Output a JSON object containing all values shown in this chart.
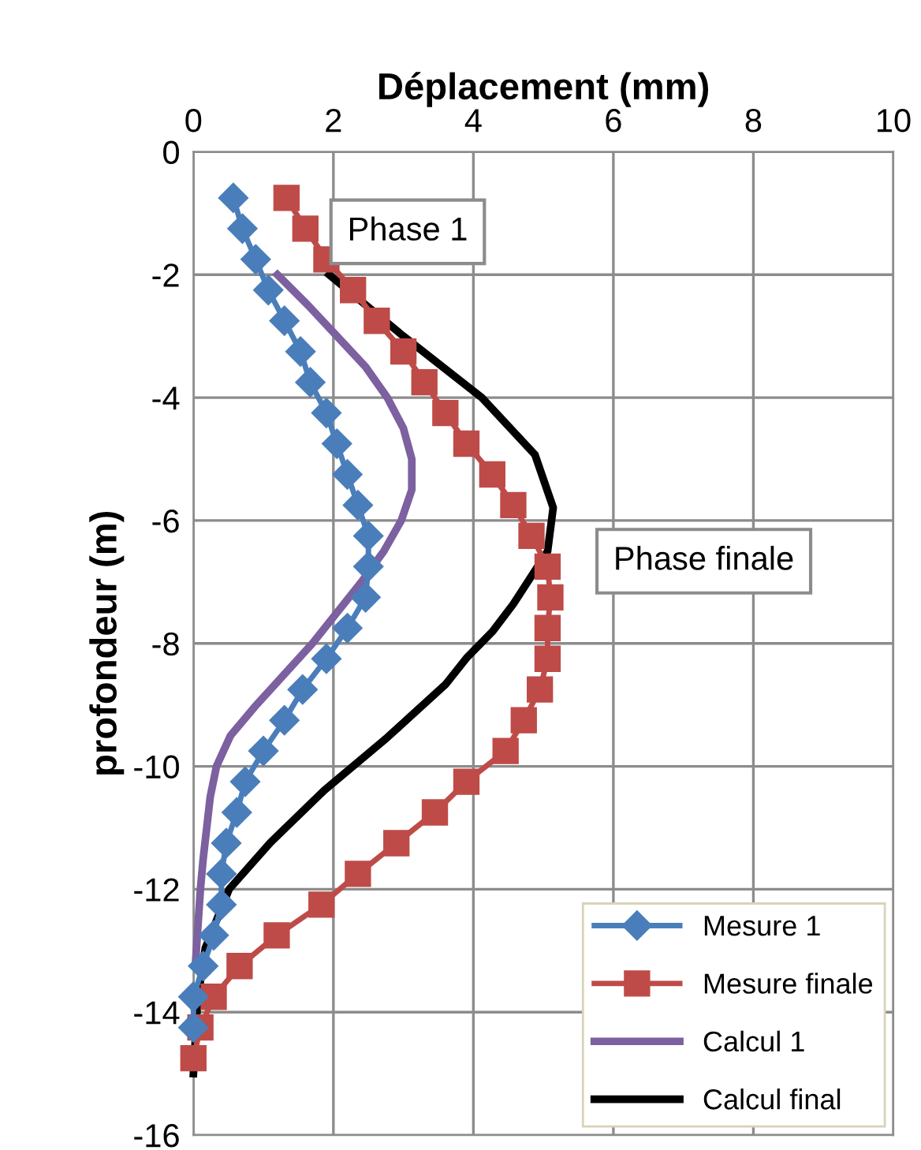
{
  "chart_data": {
    "type": "line",
    "xlabel": "Déplacement (mm)",
    "ylabel": "profondeur (m)",
    "xlim": [
      0,
      10
    ],
    "xticks": [
      0,
      2,
      4,
      6,
      8,
      10
    ],
    "ylim": [
      -16,
      0
    ],
    "yticks": [
      -16,
      -14,
      -12,
      -10,
      -8,
      -6,
      -4,
      -2,
      0
    ],
    "grid": true,
    "legend": "bottom right",
    "annotations": [
      "Phase 1",
      "Phase finale"
    ],
    "series": [
      {
        "name": "Mesure 1",
        "color": "#4a7ebb",
        "marker": "diamond",
        "line_style": "solid",
        "x": [
          0.57,
          0.7,
          0.89,
          1.07,
          1.3,
          1.53,
          1.67,
          1.9,
          2.05,
          2.2,
          2.35,
          2.5,
          2.5,
          2.46,
          2.2,
          1.9,
          1.56,
          1.3,
          1.0,
          0.74,
          0.62,
          0.47,
          0.4,
          0.4,
          0.29,
          0.14,
          0.0,
          0.0
        ],
        "values": [
          -0.75,
          -1.25,
          -1.75,
          -2.25,
          -2.75,
          -3.25,
          -3.75,
          -4.25,
          -4.75,
          -5.25,
          -5.75,
          -6.25,
          -6.75,
          -7.25,
          -7.75,
          -8.25,
          -8.75,
          -9.25,
          -9.75,
          -10.25,
          -10.75,
          -11.25,
          -11.75,
          -12.25,
          -12.75,
          -13.25,
          -13.75,
          -14.25
        ]
      },
      {
        "name": "Mesure finale",
        "color": "#be4b48",
        "marker": "square",
        "line_style": "solid",
        "x": [
          1.33,
          1.6,
          1.9,
          2.28,
          2.62,
          3.0,
          3.3,
          3.6,
          3.9,
          4.27,
          4.57,
          4.83,
          5.06,
          5.1,
          5.06,
          5.06,
          4.95,
          4.72,
          4.46,
          3.9,
          3.45,
          2.9,
          2.35,
          1.83,
          1.19,
          0.66,
          0.29,
          0.1,
          0.0
        ],
        "values": [
          -0.75,
          -1.25,
          -1.75,
          -2.25,
          -2.75,
          -3.25,
          -3.75,
          -4.25,
          -4.75,
          -5.25,
          -5.75,
          -6.25,
          -6.75,
          -7.25,
          -7.75,
          -8.25,
          -8.75,
          -9.25,
          -9.75,
          -10.25,
          -10.75,
          -11.25,
          -11.75,
          -12.25,
          -12.75,
          -13.25,
          -13.75,
          -14.25,
          -14.75
        ]
      },
      {
        "name": "Calcul 1",
        "color": "#7d60a0",
        "marker": "none",
        "line_style": "solid",
        "x": [
          1.2,
          1.64,
          2.05,
          2.46,
          2.77,
          3.0,
          3.12,
          3.12,
          2.97,
          2.72,
          2.4,
          2.05,
          1.7,
          1.3,
          0.9,
          0.53,
          0.33,
          0.24,
          0.19,
          0.14,
          0.1,
          0.03
        ],
        "values": [
          -2.0,
          -2.5,
          -3.0,
          -3.5,
          -4.0,
          -4.5,
          -5.0,
          -5.5,
          -6.0,
          -6.5,
          -7.0,
          -7.5,
          -8.0,
          -8.5,
          -9.0,
          -9.5,
          -10.0,
          -10.5,
          -11.0,
          -11.5,
          -12.0,
          -13.2
        ]
      },
      {
        "name": "Calcul final",
        "color": "#000000",
        "marker": "none",
        "line_style": "solid",
        "x": [
          1.94,
          3.0,
          4.12,
          4.88,
          5.14,
          5.06,
          4.57,
          4.27,
          3.9,
          3.6,
          2.77,
          1.87,
          1.1,
          0.51,
          0.17,
          0.06,
          0.0
        ],
        "values": [
          -2.0,
          -3.0,
          -4.0,
          -4.93,
          -5.79,
          -6.5,
          -7.36,
          -7.81,
          -8.24,
          -8.67,
          -9.53,
          -10.39,
          -11.24,
          -12.0,
          -12.96,
          -13.8,
          -15.0
        ]
      }
    ]
  }
}
